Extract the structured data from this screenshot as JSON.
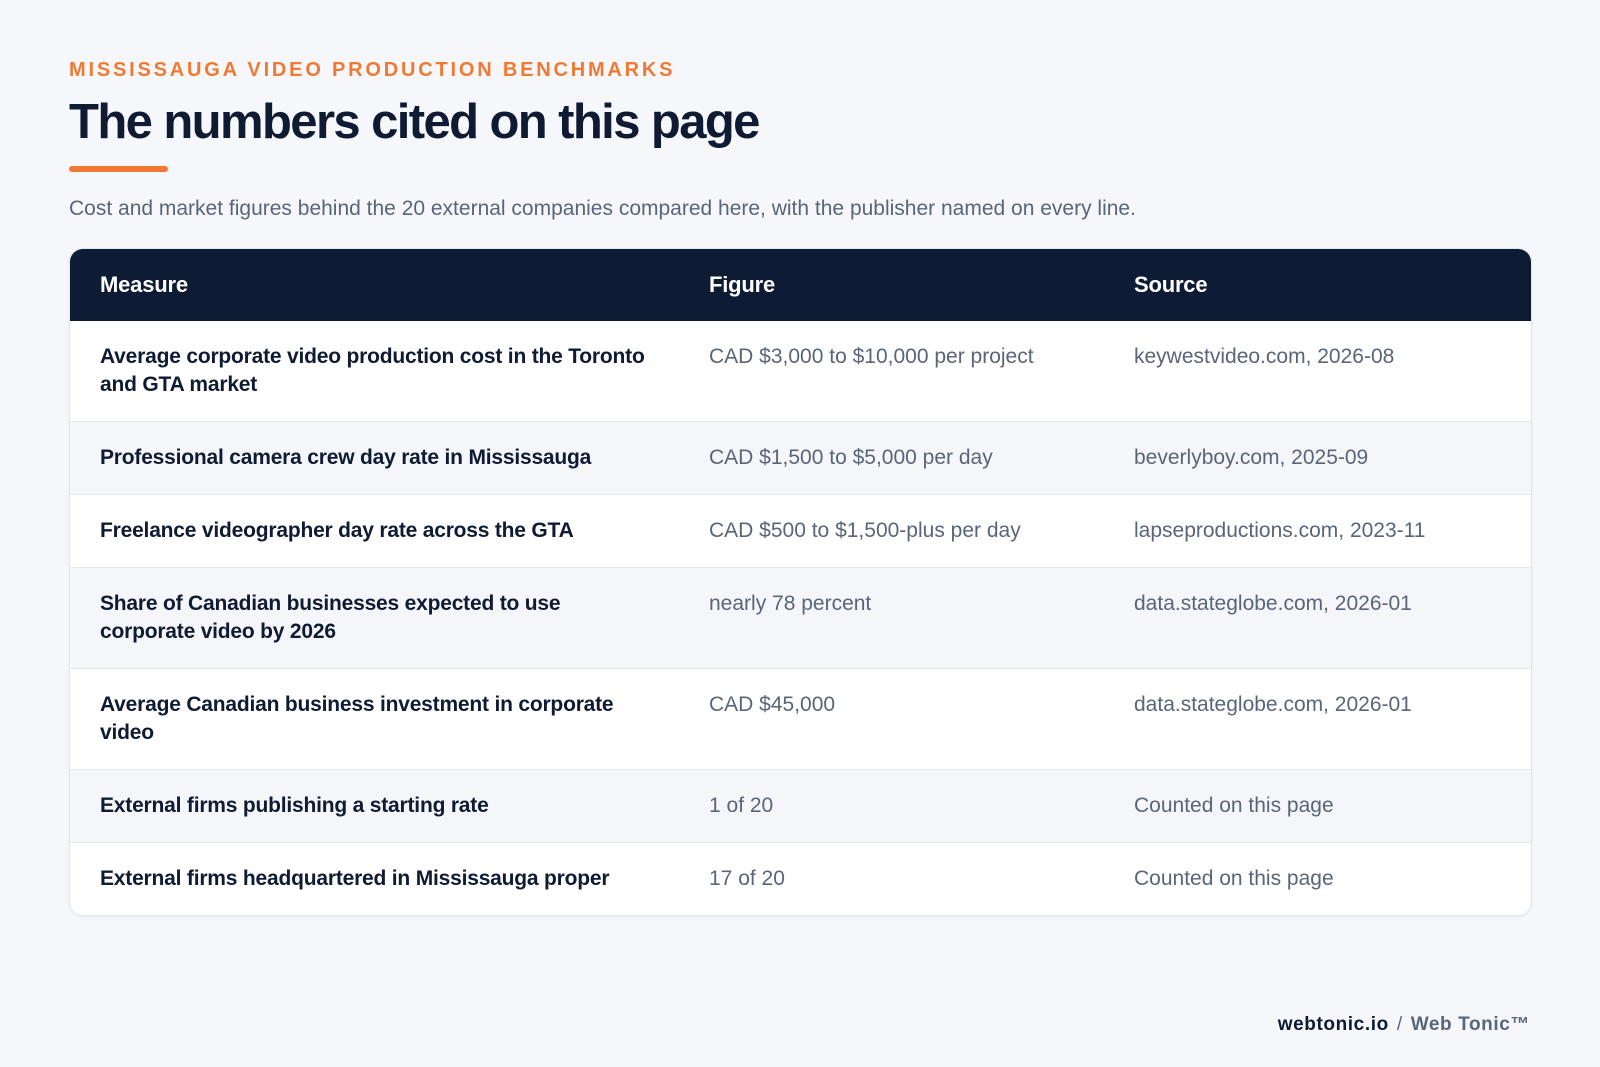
{
  "header": {
    "eyebrow": "MISSISSAUGA VIDEO PRODUCTION BENCHMARKS",
    "title": "The numbers cited on this page",
    "subtitle": "Cost and market figures behind the 20 external companies compared here, with the publisher named on every line."
  },
  "table": {
    "columns": [
      "Measure",
      "Figure",
      "Source"
    ],
    "rows": [
      {
        "measure": "Average corporate video production cost in the Toronto and GTA market",
        "figure": "CAD $3,000 to $10,000 per project",
        "source": "keywestvideo.com, 2026-08"
      },
      {
        "measure": "Professional camera crew day rate in Mississauga",
        "figure": "CAD $1,500 to $5,000 per day",
        "source": "beverlyboy.com, 2025-09"
      },
      {
        "measure": "Freelance videographer day rate across the GTA",
        "figure": "CAD $500 to $1,500-plus per day",
        "source": "lapseproductions.com, 2023-11"
      },
      {
        "measure": "Share of Canadian businesses expected to use corporate video by 2026",
        "figure": "nearly 78 percent",
        "source": "data.stateglobe.com, 2026-01"
      },
      {
        "measure": "Average Canadian business investment in corporate video",
        "figure": "CAD $45,000",
        "source": "data.stateglobe.com, 2026-01"
      },
      {
        "measure": "External firms publishing a starting rate",
        "figure": "1 of 20",
        "source": "Counted on this page"
      },
      {
        "measure": "External firms headquartered in Mississauga proper",
        "figure": "17 of 20",
        "source": "Counted on this page"
      }
    ]
  },
  "footer": {
    "domain": "webtonic.io",
    "separator": "/",
    "brand": "Web Tonic™"
  },
  "colors": {
    "accent": "#f07a33",
    "navy": "#0d1b34",
    "muted_text": "#5a6578",
    "alt_row": "#f4f6f9"
  }
}
